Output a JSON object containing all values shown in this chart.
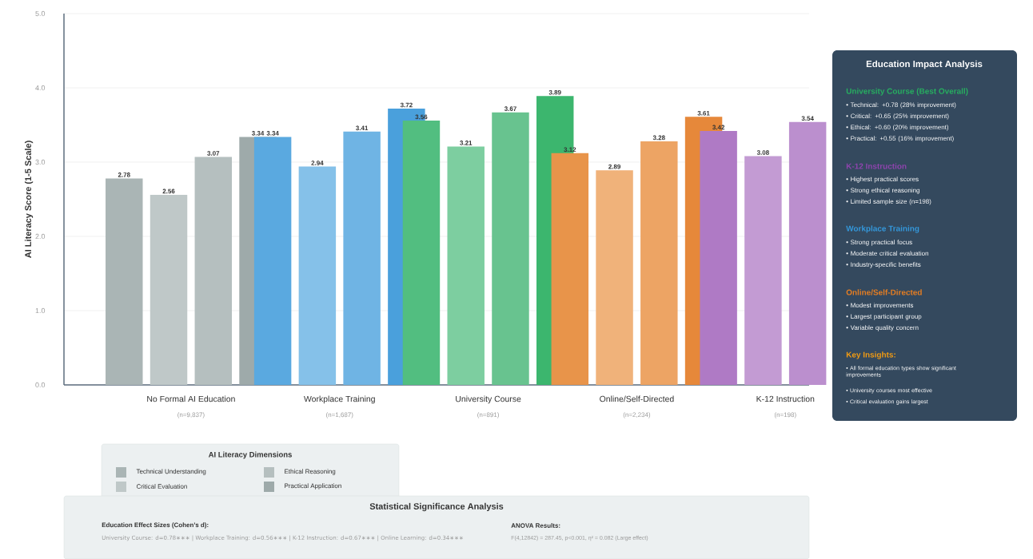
{
  "chart_data": {
    "type": "bar",
    "ylabel": "AI Literacy Score (1-5 Scale)",
    "categories": [
      "No Formal AI Education",
      "Workplace Training",
      "University Course",
      "Online/Self-Directed",
      "K-12 Instruction"
    ],
    "series": [
      {
        "name": "Technical Understanding",
        "colors": [
          "#aab5b5",
          "#5aa9e0",
          "#52be80",
          "#e8944a",
          "#af7ac5"
        ],
        "values": [
          2.78,
          3.34,
          3.56,
          3.12,
          3.42
        ]
      },
      {
        "name": "Critical Evaluation",
        "colors": [
          "#bfc8c8",
          "#85c1e9",
          "#7dcea0",
          "#f0b27a",
          "#c39bd3"
        ],
        "values": [
          2.56,
          2.94,
          3.21,
          2.89,
          3.08
        ]
      },
      {
        "name": "Ethical Reasoning",
        "colors": [
          "#b5bfbf",
          "#6fb4e4",
          "#68c38f",
          "#eda464",
          "#bb8fce"
        ],
        "values": [
          3.07,
          3.41,
          3.67,
          3.28,
          3.54
        ]
      },
      {
        "name": "Practical Application",
        "colors": [
          "#9eaaaa",
          "#4aa0dc",
          "#3cb66e",
          "#e6883a",
          null
        ],
        "values": [
          3.34,
          3.72,
          3.89,
          3.61,
          null
        ]
      }
    ],
    "ylim": [
      0,
      5
    ],
    "yticks": [
      {
        "value": 0,
        "label": "0.0"
      },
      {
        "value": 1,
        "label": "1.0"
      },
      {
        "value": 2,
        "label": "2.0"
      },
      {
        "value": 3,
        "label": "3.0"
      },
      {
        "value": 4,
        "label": "4.0"
      },
      {
        "value": 5,
        "label": "5.0"
      }
    ],
    "grid": "y",
    "data_labels": true,
    "legend": "bottom left",
    "legend_title": "AI Literacy Dimensions",
    "annotations": [
      "Education Impact Analysis",
      "University Course (Best Overall)",
      "• Technical: +0.78 (28% improvement)",
      "• Critical: +0.65 (25% improvement)",
      "• Ethical: +0.60 (20% improvement)",
      "• Practical: +0.55 (16% improvement)",
      "K-12 Instruction",
      "• Highest practical scores",
      "• Strong ethical reasoning",
      "• Limited sample size (n=198)",
      "Workplace Training",
      "• Strong practical focus",
      "• Moderate critical evaluation",
      "• Industry-specific benefits",
      "Online/Self-Directed",
      "• Modest improvements",
      "• Largest participant group",
      "• Variable quality concern",
      "Key Insights:",
      "• All formal education types show significant improvements",
      "• University courses most effective",
      "• Critical evaluation gains largest",
      "Statistical Significance Analysis",
      "Education Effect Sizes (Cohen’s d):",
      "University Course: d=0.78∗∗∗ | Workplace Training: d=0.56∗∗∗ | K-12 Instruction: d=0.67∗∗∗ | Online Learning: d=0.34∗∗∗",
      "ANOVA Results:",
      "F(4,12842) = 287.45, p<0.001, η² = 0.082 (Large effect)",
      "(n=9,837)",
      "(n=1,687)",
      "(n=891)",
      "(n=2,234)",
      "(n=198)"
    ]
  }
}
